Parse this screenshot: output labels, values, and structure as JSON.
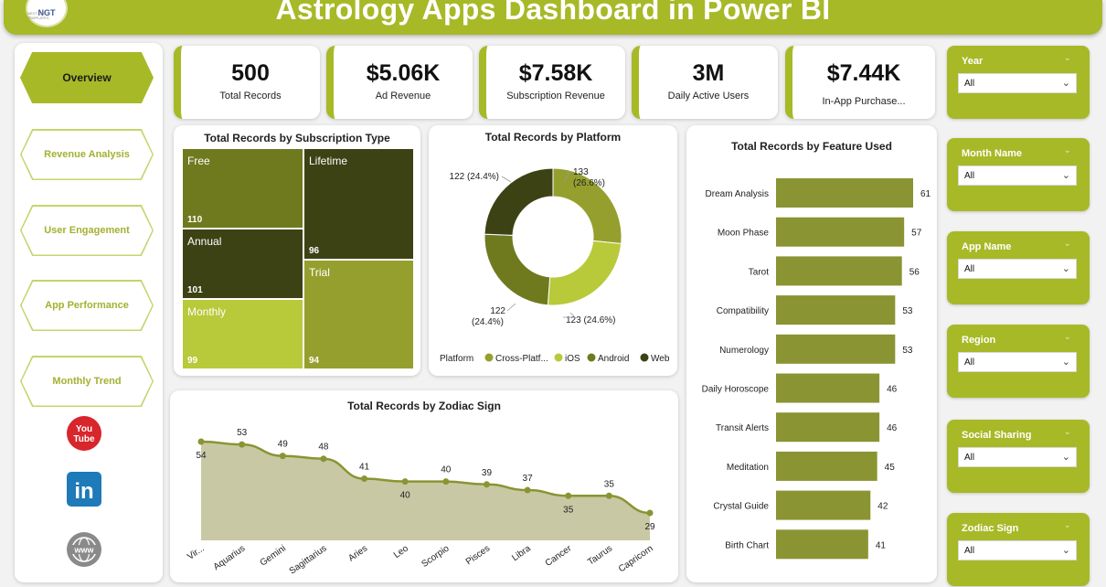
{
  "header": {
    "title": "Astrology Apps Dashboard in Power BI",
    "logo_text": "NGT",
    "logo_subtext": "NEXT GEN TEMPLATES"
  },
  "nav": {
    "items": [
      {
        "label": "Overview",
        "active": true
      },
      {
        "label": "Revenue Analysis",
        "active": false
      },
      {
        "label": "User Engagement",
        "active": false
      },
      {
        "label": "App Performance",
        "active": false
      },
      {
        "label": "Monthly Trend",
        "active": false
      }
    ],
    "social": [
      {
        "icon": "youtube-icon",
        "label": "You Tube"
      },
      {
        "icon": "linkedin-icon",
        "label": "in"
      },
      {
        "icon": "web-icon",
        "label": "www"
      }
    ]
  },
  "kpis": [
    {
      "value": "500",
      "label": "Total Records"
    },
    {
      "value": "$5.06K",
      "label": "Ad Revenue"
    },
    {
      "value": "$7.58K",
      "label": "Subscription Revenue"
    },
    {
      "value": "3M",
      "label": "Daily Active Users"
    },
    {
      "value": "$7.44K",
      "label": "In-App Purchase..."
    }
  ],
  "slicers": [
    {
      "label": "Year",
      "value": "All"
    },
    {
      "label": "Month Name",
      "value": "All"
    },
    {
      "label": "App Name",
      "value": "All"
    },
    {
      "label": "Region",
      "value": "All"
    },
    {
      "label": "Social Sharing",
      "value": "All"
    },
    {
      "label": "Zodiac Sign",
      "value": "All"
    }
  ],
  "colors": {
    "accent": "#a7b927",
    "dark": "#3d4215",
    "mid": "#6f7a1f",
    "olive": "#959f2e",
    "light": "#b8c93a",
    "bar": "#8a9432",
    "area_fill": "#c8c9a4",
    "line": "#8a9432"
  },
  "chart_data": [
    {
      "type": "treemap",
      "title": "Total Records by Subscription Type",
      "categories": [
        "Free",
        "Lifetime",
        "Annual",
        "Trial",
        "Monthly"
      ],
      "values": [
        110,
        96,
        101,
        94,
        99
      ]
    },
    {
      "type": "pie",
      "title": "Total Records by Platform",
      "legend_title": "Platform",
      "legend_position": "bottom",
      "categories": [
        "Cross-Platf...",
        "iOS",
        "Android",
        "Web"
      ],
      "values": [
        133,
        123,
        122,
        122
      ],
      "labels": [
        "133 (26.6%)",
        "123 (24.6%)",
        "122 (24.4%)",
        "122 (24.4%)"
      ]
    },
    {
      "type": "bar",
      "orientation": "horizontal",
      "title": "Total Records by Feature Used",
      "categories": [
        "Dream Analysis",
        "Moon Phase",
        "Tarot",
        "Compatibility",
        "Numerology",
        "Daily Horoscope",
        "Transit Alerts",
        "Meditation",
        "Crystal Guide",
        "Birth Chart"
      ],
      "values": [
        61,
        57,
        56,
        53,
        53,
        46,
        46,
        45,
        42,
        41
      ]
    },
    {
      "type": "area",
      "title": "Total Records by Zodiac Sign",
      "categories": [
        "Vir...",
        "Aquarius",
        "Gemini",
        "Sagittarius",
        "Aries",
        "Leo",
        "Scorpio",
        "Pisces",
        "Libra",
        "Cancer",
        "Taurus",
        "Capricorn"
      ],
      "values": [
        54,
        53,
        49,
        48,
        41,
        40,
        40,
        39,
        37,
        35,
        35,
        29
      ],
      "ylim": [
        0,
        60
      ]
    }
  ]
}
